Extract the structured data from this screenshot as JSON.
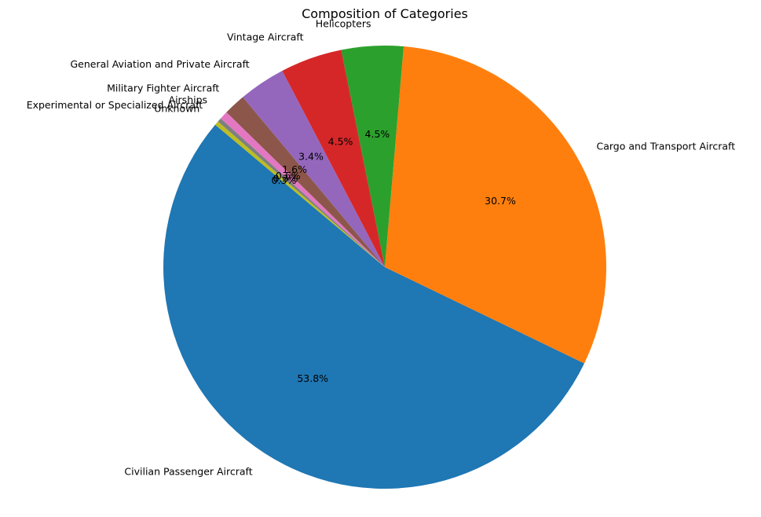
{
  "chart_data": {
    "type": "pie",
    "title": "Composition of Categories",
    "start_angle_deg": 140,
    "direction": "counterclockwise",
    "slices": [
      {
        "label": "Civilian Passenger Aircraft",
        "value": 53.8,
        "pct_label": "53.8%",
        "color": "#1f77b4"
      },
      {
        "label": "Cargo and Transport Aircraft",
        "value": 30.7,
        "pct_label": "30.7%",
        "color": "#ff7f0e"
      },
      {
        "label": "Helicopters",
        "value": 4.5,
        "pct_label": "4.5%",
        "color": "#2ca02c"
      },
      {
        "label": "Vintage Aircraft",
        "value": 4.5,
        "pct_label": "4.5%",
        "color": "#d62728"
      },
      {
        "label": "General Aviation and Private Aircraft",
        "value": 3.4,
        "pct_label": "3.4%",
        "color": "#9467bd"
      },
      {
        "label": "Military Fighter Aircraft",
        "value": 1.6,
        "pct_label": "1.6%",
        "color": "#8c564b"
      },
      {
        "label": "Airships",
        "value": 0.6,
        "pct_label": "0.6%",
        "color": "#e377c2"
      },
      {
        "label": "Experimental or Specialized Aircraft",
        "value": 0.3,
        "pct_label": "0.3%",
        "color": "#7f7f7f"
      },
      {
        "label": "Unknown",
        "value": 0.3,
        "pct_label": "0.3%",
        "color": "#bcbd22"
      }
    ]
  }
}
